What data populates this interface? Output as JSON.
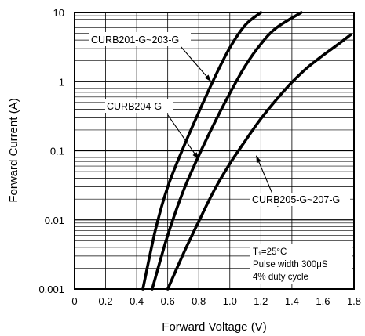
{
  "chart_data": {
    "type": "line",
    "xlabel": "Forward Voltage (V)",
    "ylabel": "Forward Current (A)",
    "xlim": [
      0,
      1.8
    ],
    "ylim": [
      0.001,
      10
    ],
    "yscale": "log",
    "x_ticks": [
      "0",
      "0.2",
      "0.4",
      "0.6",
      "0.8",
      "1.0",
      "1.2",
      "1.4",
      "1.6",
      "1.8"
    ],
    "y_ticks": [
      "0.001",
      "0.01",
      "0.1",
      "1",
      "10"
    ],
    "grid": true,
    "series": [
      {
        "name": "CURB201-G~203-G",
        "points": [
          [
            0.44,
            0.001
          ],
          [
            0.52,
            0.007
          ],
          [
            0.6,
            0.03
          ],
          [
            0.7,
            0.11
          ],
          [
            0.8,
            0.36
          ],
          [
            0.9,
            1.12
          ],
          [
            1.0,
            3.1
          ],
          [
            1.1,
            6.6
          ],
          [
            1.2,
            10
          ]
        ]
      },
      {
        "name": "CURB204-G",
        "points": [
          [
            0.5,
            0.001
          ],
          [
            0.6,
            0.006
          ],
          [
            0.7,
            0.026
          ],
          [
            0.8,
            0.085
          ],
          [
            0.9,
            0.25
          ],
          [
            1.0,
            0.68
          ],
          [
            1.1,
            1.7
          ],
          [
            1.2,
            3.5
          ],
          [
            1.3,
            6.0
          ],
          [
            1.46,
            10
          ]
        ]
      },
      {
        "name": "CURB205-G~207-G",
        "points": [
          [
            0.6,
            0.001
          ],
          [
            0.7,
            0.0032
          ],
          [
            0.8,
            0.0095
          ],
          [
            0.9,
            0.027
          ],
          [
            1.0,
            0.065
          ],
          [
            1.1,
            0.14
          ],
          [
            1.2,
            0.29
          ],
          [
            1.3,
            0.55
          ],
          [
            1.4,
            0.98
          ],
          [
            1.5,
            1.6
          ],
          [
            1.6,
            2.4
          ],
          [
            1.7,
            3.5
          ],
          [
            1.78,
            4.8
          ]
        ]
      }
    ],
    "annotations": {
      "label_1": "CURB201-G~203-G",
      "label_2": "CURB204-G",
      "label_3": "CURB205-G~207-G",
      "conditions": [
        "T₁=25°C",
        "Pulse width 300μS",
        "4% duty cycle"
      ]
    },
    "colors": {
      "line": "#000000",
      "grid": "#000000",
      "background": "#ffffff"
    }
  }
}
